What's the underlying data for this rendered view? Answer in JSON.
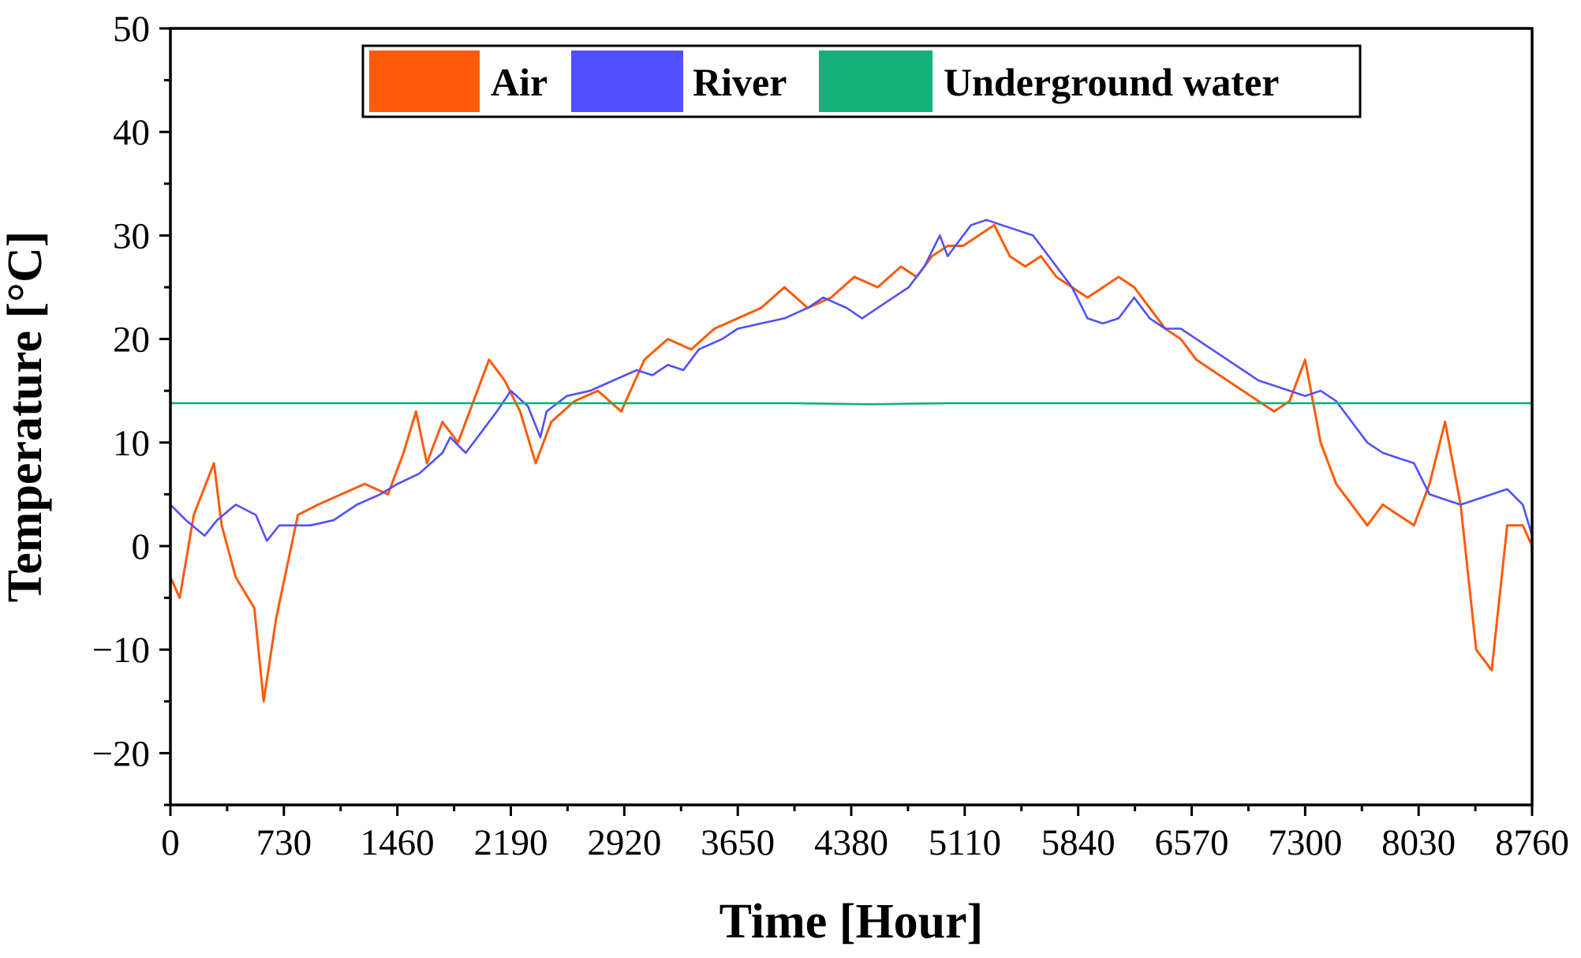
{
  "chart_data": {
    "type": "line",
    "title": "",
    "xlabel": "Time [Hour]",
    "ylabel": "Temperature [°C]",
    "xlim": [
      0,
      8760
    ],
    "ylim": [
      -25,
      50
    ],
    "xticks": [
      0,
      730,
      1460,
      2190,
      2920,
      3650,
      4380,
      5110,
      5840,
      6570,
      7300,
      8030,
      8760
    ],
    "xtick_labels": [
      "0",
      "730",
      "1460",
      "2190",
      "2920",
      "3650",
      "4380",
      "5110",
      "5840",
      "6570",
      "7300",
      "8030",
      "8760"
    ],
    "yticks": [
      -20,
      -10,
      0,
      10,
      20,
      30,
      40,
      50
    ],
    "ytick_labels": [
      "−20",
      "−10",
      "0",
      "10",
      "20",
      "30",
      "40",
      "50"
    ],
    "grid": false,
    "legend_position": "top-center",
    "series": [
      {
        "name": "Air",
        "color": "#ff5a0a",
        "x": [
          0,
          60,
          150,
          280,
          330,
          420,
          540,
          600,
          680,
          820,
          950,
          1100,
          1250,
          1400,
          1500,
          1580,
          1650,
          1750,
          1850,
          1950,
          2050,
          2150,
          2250,
          2350,
          2450,
          2600,
          2750,
          2900,
          3050,
          3200,
          3350,
          3500,
          3650,
          3800,
          3950,
          4100,
          4250,
          4400,
          4550,
          4700,
          4800,
          4900,
          5000,
          5100,
          5200,
          5300,
          5400,
          5500,
          5600,
          5700,
          5800,
          5900,
          6000,
          6100,
          6200,
          6300,
          6400,
          6500,
          6600,
          6700,
          6800,
          6900,
          7000,
          7100,
          7200,
          7300,
          7400,
          7500,
          7600,
          7700,
          7800,
          7900,
          8000,
          8100,
          8200,
          8300,
          8400,
          8500,
          8600,
          8700,
          8760
        ],
        "y": [
          -3,
          -5,
          3,
          8,
          2,
          -3,
          -6,
          -15,
          -7,
          3,
          4,
          5,
          6,
          5,
          9,
          13,
          8,
          12,
          10,
          14,
          18,
          16,
          13,
          8,
          12,
          14,
          15,
          13,
          18,
          20,
          19,
          21,
          22,
          23,
          25,
          23,
          24,
          26,
          25,
          27,
          26,
          28,
          29,
          29,
          30,
          31,
          28,
          27,
          28,
          26,
          25,
          24,
          25,
          26,
          25,
          23,
          21,
          20,
          18,
          17,
          16,
          15,
          14,
          13,
          14,
          18,
          10,
          6,
          4,
          2,
          4,
          3,
          2,
          6,
          12,
          4,
          -10,
          -12,
          2,
          2,
          0
        ]
      },
      {
        "name": "River",
        "color": "#5050ff",
        "x": [
          0,
          100,
          220,
          300,
          420,
          550,
          620,
          700,
          900,
          1050,
          1200,
          1350,
          1460,
          1600,
          1750,
          1800,
          1900,
          2000,
          2100,
          2190,
          2300,
          2380,
          2420,
          2550,
          2700,
          2850,
          3000,
          3100,
          3200,
          3300,
          3400,
          3550,
          3650,
          3800,
          3950,
          4100,
          4200,
          4350,
          4450,
          4550,
          4650,
          4750,
          4850,
          4950,
          5000,
          5050,
          5150,
          5250,
          5350,
          5450,
          5550,
          5650,
          5700,
          5800,
          5900,
          6000,
          6100,
          6200,
          6300,
          6400,
          6500,
          6600,
          6700,
          6800,
          6900,
          7000,
          7100,
          7200,
          7300,
          7400,
          7500,
          7600,
          7700,
          7800,
          7900,
          8000,
          8100,
          8200,
          8300,
          8400,
          8500,
          8600,
          8700,
          8760
        ],
        "y": [
          4,
          2.5,
          1,
          2.5,
          4,
          3,
          0.5,
          2,
          2,
          2.5,
          4,
          5,
          6,
          7,
          9,
          10.5,
          9,
          11,
          13,
          15,
          13.5,
          10.5,
          13,
          14.5,
          15,
          16,
          17,
          16.5,
          17.5,
          17,
          19,
          20,
          21,
          21.5,
          22,
          23,
          24,
          23,
          22,
          23,
          24,
          25,
          27,
          30,
          28,
          29,
          31,
          31.5,
          31,
          30.5,
          30,
          28,
          27,
          25,
          22,
          21.5,
          22,
          24,
          22,
          21,
          21,
          20,
          19,
          18,
          17,
          16,
          15.5,
          15,
          14.5,
          15,
          14,
          12,
          10,
          9,
          8.5,
          8,
          5,
          4.5,
          4,
          4.5,
          5,
          5.5,
          4,
          1
        ]
      },
      {
        "name": "Underground water",
        "color": "#14b07a",
        "x": [
          0,
          1000,
          2000,
          3000,
          4000,
          4500,
          5000,
          6000,
          7000,
          8000,
          8760
        ],
        "y": [
          13.8,
          13.8,
          13.8,
          13.8,
          13.8,
          13.7,
          13.8,
          13.8,
          13.8,
          13.8,
          13.8
        ]
      }
    ]
  }
}
